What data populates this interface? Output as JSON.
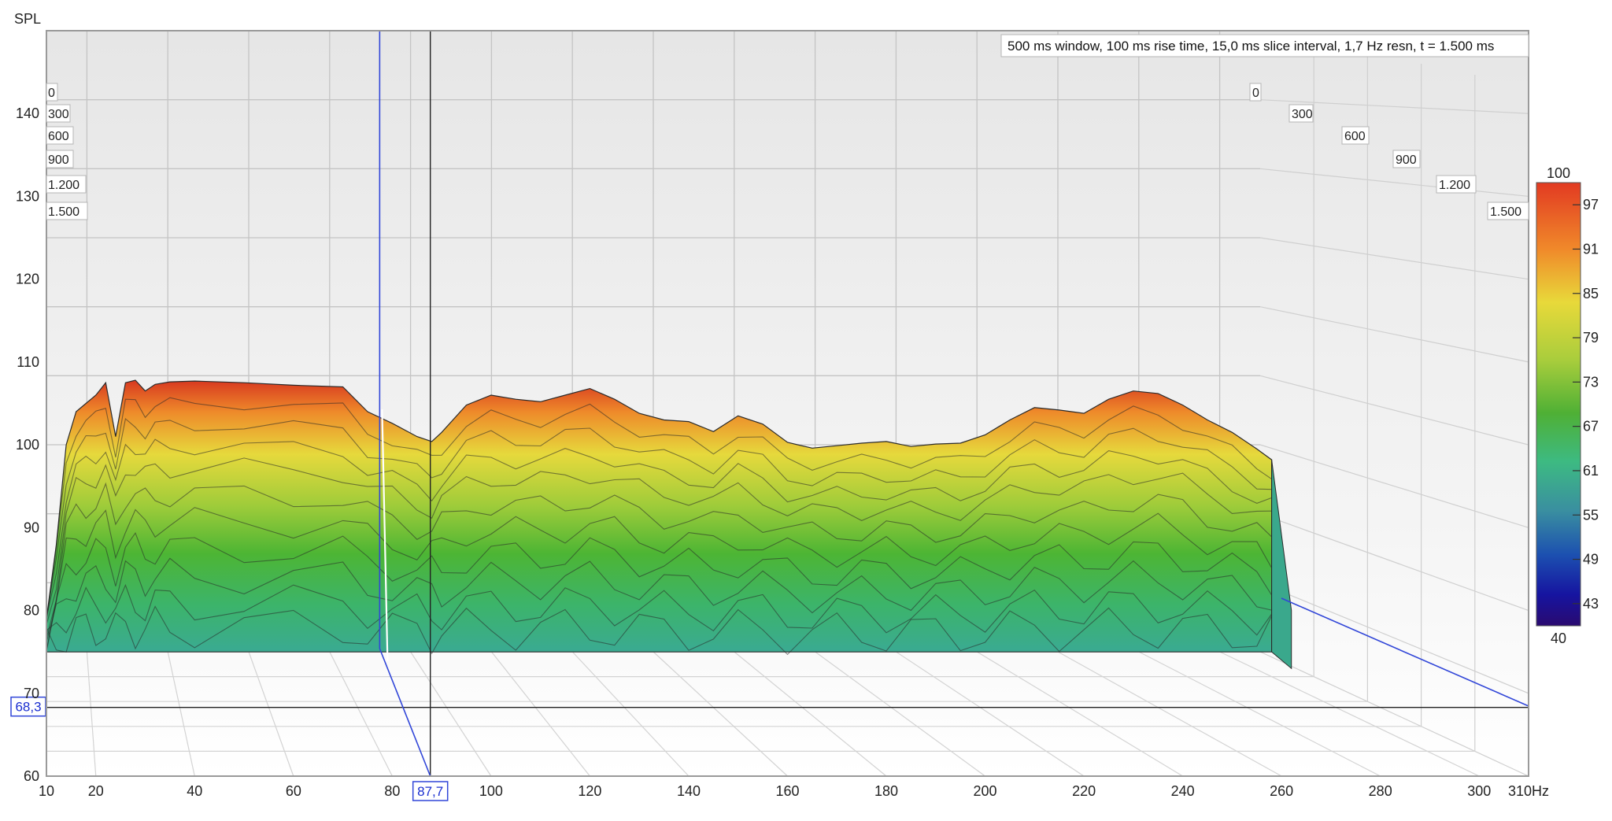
{
  "chart_data": {
    "type": "waterfall",
    "ylabel": "SPL",
    "info": "500 ms window, 100 ms rise time, 15,0 ms slice interval, 1,7 Hz resn, t = 1.500 ms",
    "x_unit": "Hz",
    "xlim": [
      10,
      310
    ],
    "ylim": [
      60,
      150
    ],
    "x_ticks": [
      "10",
      "20",
      "40",
      "60",
      "80",
      "100",
      "120",
      "140",
      "160",
      "180",
      "200",
      "220",
      "240",
      "260",
      "280",
      "300",
      "310Hz"
    ],
    "y_ticks": [
      "60",
      "70",
      "80",
      "90",
      "100",
      "110",
      "120",
      "130",
      "140"
    ],
    "time_labels": [
      "0",
      "300",
      "600",
      "900",
      "1.200",
      "1.500"
    ],
    "color_scale": {
      "min_label": "40",
      "max_label": "100",
      "ticks": [
        "97",
        "91",
        "85",
        "79",
        "73",
        "67",
        "61",
        "55",
        "49",
        "43"
      ]
    },
    "cursor": {
      "x_label": "87,7",
      "y_label": "68,3"
    },
    "front_slice": {
      "x": [
        10,
        12,
        14,
        16,
        18,
        20,
        22,
        24,
        26,
        28,
        30,
        32,
        35,
        40,
        50,
        60,
        70,
        75,
        80,
        85,
        88,
        90,
        95,
        100,
        105,
        110,
        115,
        120,
        125,
        130,
        135,
        140,
        145,
        150,
        155,
        160,
        165,
        170,
        175,
        180,
        185,
        190,
        195,
        200,
        205,
        210,
        215,
        220,
        225,
        230,
        235,
        240,
        245,
        250,
        255,
        258
      ],
      "spl": [
        79,
        88,
        100,
        104,
        105,
        106,
        107.5,
        101,
        107.5,
        107.8,
        106.5,
        107.3,
        107.6,
        107.7,
        107.5,
        107.2,
        107,
        104,
        102.6,
        101,
        100.4,
        101.5,
        104.8,
        106,
        105.5,
        105.2,
        106,
        106.8,
        105.5,
        103.8,
        103,
        102.8,
        101.6,
        103.5,
        102.5,
        100.3,
        99.6,
        99.9,
        100.2,
        100.4,
        99.8,
        100.1,
        100.2,
        101.2,
        103,
        104.5,
        104.2,
        103.8,
        105.5,
        106.5,
        106.2,
        104.8,
        103,
        101.5,
        99.5,
        98.2
      ],
      "base_spl": 75
    }
  }
}
